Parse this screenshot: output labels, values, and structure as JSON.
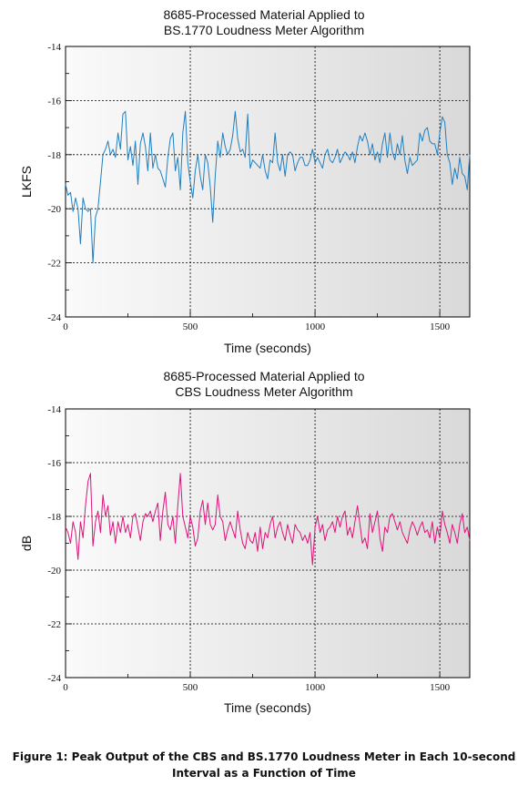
{
  "caption": {
    "line1": "Figure 1: Peak Output of the CBS and BS.1770 Loudness Meter in Each 10-second",
    "line2": "Interval as a Function of Time"
  },
  "chart_data": [
    {
      "type": "line",
      "title_line1": "8685-Processed Material Applied to",
      "title_line2": "BS.1770 Loudness Meter Algorithm",
      "xlabel": "Time (seconds)",
      "ylabel": "LKFS",
      "xlim": [
        0,
        1620
      ],
      "ylim": [
        -24,
        -14
      ],
      "xticks": [
        0,
        500,
        1000,
        1500
      ],
      "xtick_labels": [
        "0",
        "500",
        "1000",
        "1500"
      ],
      "yticks": [
        -24,
        -22,
        -20,
        -18,
        -16,
        -14
      ],
      "ytick_labels": [
        "-24",
        "-22",
        "-20",
        "-18",
        "-16",
        "-14"
      ],
      "grid": true,
      "color": "#1f7fc0",
      "series": [
        {
          "x": [
            0,
            10,
            20,
            30,
            40,
            50,
            60,
            70,
            80,
            90,
            100,
            110,
            120,
            130,
            140,
            150,
            160,
            170,
            180,
            190,
            200,
            210,
            220,
            230,
            240,
            250,
            260,
            270,
            280,
            290,
            300,
            310,
            320,
            330,
            340,
            350,
            360,
            370,
            380,
            390,
            400,
            410,
            420,
            430,
            440,
            450,
            460,
            470,
            480,
            490,
            500,
            510,
            520,
            530,
            540,
            550,
            560,
            570,
            580,
            590,
            600,
            610,
            620,
            630,
            640,
            650,
            660,
            670,
            680,
            690,
            700,
            710,
            720,
            730,
            740,
            750,
            760,
            770,
            780,
            790,
            800,
            810,
            820,
            830,
            840,
            850,
            860,
            870,
            880,
            890,
            900,
            910,
            920,
            930,
            940,
            950,
            960,
            970,
            980,
            990,
            1000,
            1010,
            1020,
            1030,
            1040,
            1050,
            1060,
            1070,
            1080,
            1090,
            1100,
            1110,
            1120,
            1130,
            1140,
            1150,
            1160,
            1170,
            1180,
            1190,
            1200,
            1210,
            1220,
            1230,
            1240,
            1250,
            1260,
            1270,
            1280,
            1290,
            1300,
            1310,
            1320,
            1330,
            1340,
            1350,
            1360,
            1370,
            1380,
            1390,
            1400,
            1410,
            1420,
            1430,
            1440,
            1450,
            1460,
            1470,
            1480,
            1490,
            1500,
            1510,
            1520,
            1530,
            1540,
            1550,
            1560,
            1570,
            1580,
            1590,
            1600,
            1610,
            1620
          ],
          "y": [
            -19.1,
            -19.5,
            -19.4,
            -20.1,
            -19.6,
            -20.0,
            -21.3,
            -19.6,
            -20.0,
            -20.1,
            -20.0,
            -22.0,
            -20.3,
            -20.0,
            -19.0,
            -18.0,
            -17.8,
            -17.5,
            -18.0,
            -17.8,
            -18.1,
            -17.2,
            -17.8,
            -16.5,
            -16.4,
            -18.2,
            -17.7,
            -18.4,
            -17.5,
            -19.1,
            -17.6,
            -17.2,
            -17.7,
            -18.6,
            -17.2,
            -18.5,
            -18.0,
            -18.5,
            -18.6,
            -18.9,
            -19.2,
            -18.1,
            -17.4,
            -17.2,
            -18.6,
            -18.1,
            -19.3,
            -17.2,
            -16.4,
            -18.3,
            -19.0,
            -19.6,
            -18.6,
            -18.0,
            -18.8,
            -19.3,
            -18.0,
            -18.3,
            -19.2,
            -20.5,
            -18.8,
            -17.5,
            -18.1,
            -17.2,
            -17.7,
            -18.0,
            -17.8,
            -17.3,
            -16.4,
            -17.4,
            -17.9,
            -17.8,
            -18.1,
            -16.5,
            -18.5,
            -18.2,
            -18.3,
            -18.4,
            -18.5,
            -18.0,
            -18.6,
            -18.9,
            -18.2,
            -18.3,
            -17.2,
            -18.3,
            -18.6,
            -18.0,
            -18.8,
            -18.0,
            -17.9,
            -18.0,
            -18.6,
            -18.3,
            -18.1,
            -18.1,
            -18.4,
            -18.4,
            -18.2,
            -17.8,
            -18.3,
            -18.1,
            -18.3,
            -18.5,
            -18.0,
            -17.8,
            -18.2,
            -18.3,
            -18.1,
            -17.8,
            -18.3,
            -18.1,
            -17.9,
            -18.0,
            -18.2,
            -17.9,
            -18.3,
            -17.7,
            -17.3,
            -17.5,
            -17.2,
            -17.5,
            -18.0,
            -17.6,
            -18.2,
            -17.9,
            -18.3,
            -17.6,
            -17.2,
            -18.1,
            -17.2,
            -17.9,
            -18.2,
            -17.6,
            -18.0,
            -17.3,
            -18.2,
            -18.7,
            -18.1,
            -18.4,
            -18.3,
            -18.2,
            -17.2,
            -17.5,
            -17.1,
            -17.0,
            -17.5,
            -17.6,
            -17.6,
            -18.0,
            -17.2,
            -16.6,
            -16.8,
            -18.0,
            -18.3,
            -19.1,
            -18.5,
            -18.9,
            -18.1,
            -18.7,
            -18.8,
            -19.3,
            -18.0
          ]
        }
      ]
    },
    {
      "type": "line",
      "title_line1": "8685-Processed Material Applied to",
      "title_line2": "CBS Loudness Meter Algorithm",
      "xlabel": "Time (seconds)",
      "ylabel": "dB",
      "xlim": [
        0,
        1620
      ],
      "ylim": [
        -24,
        -14
      ],
      "xticks": [
        0,
        500,
        1000,
        1500
      ],
      "xtick_labels": [
        "0",
        "500",
        "1000",
        "1500"
      ],
      "yticks": [
        -24,
        -22,
        -20,
        -18,
        -16,
        -14
      ],
      "ytick_labels": [
        "-24",
        "-22",
        "-20",
        "-18",
        "-16",
        "-14"
      ],
      "grid": true,
      "color": "#e0127a",
      "series": [
        {
          "x": [
            0,
            10,
            20,
            30,
            40,
            50,
            60,
            70,
            80,
            90,
            100,
            110,
            120,
            130,
            140,
            150,
            160,
            170,
            180,
            190,
            200,
            210,
            220,
            230,
            240,
            250,
            260,
            270,
            280,
            290,
            300,
            310,
            320,
            330,
            340,
            350,
            360,
            370,
            380,
            390,
            400,
            410,
            420,
            430,
            440,
            450,
            460,
            470,
            480,
            490,
            500,
            510,
            520,
            530,
            540,
            550,
            560,
            570,
            580,
            590,
            600,
            610,
            620,
            630,
            640,
            650,
            660,
            670,
            680,
            690,
            700,
            710,
            720,
            730,
            740,
            750,
            760,
            770,
            780,
            790,
            800,
            810,
            820,
            830,
            840,
            850,
            860,
            870,
            880,
            890,
            900,
            910,
            920,
            930,
            940,
            950,
            960,
            970,
            980,
            990,
            1000,
            1010,
            1020,
            1030,
            1040,
            1050,
            1060,
            1070,
            1080,
            1090,
            1100,
            1110,
            1120,
            1130,
            1140,
            1150,
            1160,
            1170,
            1180,
            1190,
            1200,
            1210,
            1220,
            1230,
            1240,
            1250,
            1260,
            1270,
            1280,
            1290,
            1300,
            1310,
            1320,
            1330,
            1340,
            1350,
            1360,
            1370,
            1380,
            1390,
            1400,
            1410,
            1420,
            1430,
            1440,
            1450,
            1460,
            1470,
            1480,
            1490,
            1500,
            1510,
            1520,
            1530,
            1540,
            1550,
            1560,
            1570,
            1580,
            1590,
            1600,
            1610,
            1620
          ],
          "y": [
            -18.4,
            -18.6,
            -19.0,
            -18.2,
            -18.6,
            -19.6,
            -18.2,
            -18.8,
            -17.6,
            -16.7,
            -16.4,
            -19.1,
            -18.2,
            -17.8,
            -18.6,
            -17.2,
            -18.0,
            -17.6,
            -18.7,
            -18.2,
            -19.0,
            -18.2,
            -18.6,
            -18.0,
            -18.6,
            -18.3,
            -18.8,
            -18.0,
            -17.9,
            -18.4,
            -18.9,
            -18.2,
            -17.9,
            -18.0,
            -17.8,
            -18.2,
            -17.8,
            -17.5,
            -18.9,
            -17.8,
            -17.1,
            -18.3,
            -18.5,
            -18.0,
            -19.0,
            -17.6,
            -16.4,
            -18.0,
            -18.4,
            -18.8,
            -18.0,
            -18.4,
            -19.1,
            -18.8,
            -17.8,
            -17.4,
            -18.3,
            -17.5,
            -18.3,
            -18.5,
            -18.3,
            -17.2,
            -18.0,
            -18.2,
            -18.9,
            -18.5,
            -18.2,
            -18.5,
            -18.8,
            -17.8,
            -18.5,
            -19.0,
            -19.2,
            -18.6,
            -18.9,
            -19.0,
            -18.6,
            -19.3,
            -18.4,
            -19.2,
            -18.6,
            -18.8,
            -18.3,
            -18.0,
            -18.8,
            -18.4,
            -18.2,
            -18.6,
            -18.9,
            -18.3,
            -18.7,
            -19.0,
            -18.3,
            -18.5,
            -18.6,
            -18.9,
            -18.7,
            -19.0,
            -18.6,
            -19.8,
            -18.4,
            -18.0,
            -18.6,
            -18.3,
            -18.9,
            -18.5,
            -18.4,
            -18.2,
            -18.6,
            -18.0,
            -18.4,
            -18.0,
            -17.8,
            -18.7,
            -18.4,
            -18.8,
            -18.2,
            -17.6,
            -18.3,
            -19.0,
            -18.8,
            -19.2,
            -17.9,
            -18.6,
            -18.2,
            -17.8,
            -18.8,
            -19.3,
            -18.4,
            -18.6,
            -18.0,
            -17.9,
            -18.2,
            -18.5,
            -18.2,
            -18.6,
            -18.8,
            -19.0,
            -18.5,
            -18.2,
            -18.4,
            -18.7,
            -18.4,
            -18.2,
            -18.6,
            -18.5,
            -18.8,
            -18.2,
            -19.0,
            -18.4,
            -18.8,
            -17.8,
            -18.3,
            -18.6,
            -19.0,
            -18.3,
            -18.6,
            -19.0,
            -18.3,
            -17.9,
            -18.6,
            -18.4,
            -18.9
          ]
        }
      ]
    }
  ]
}
